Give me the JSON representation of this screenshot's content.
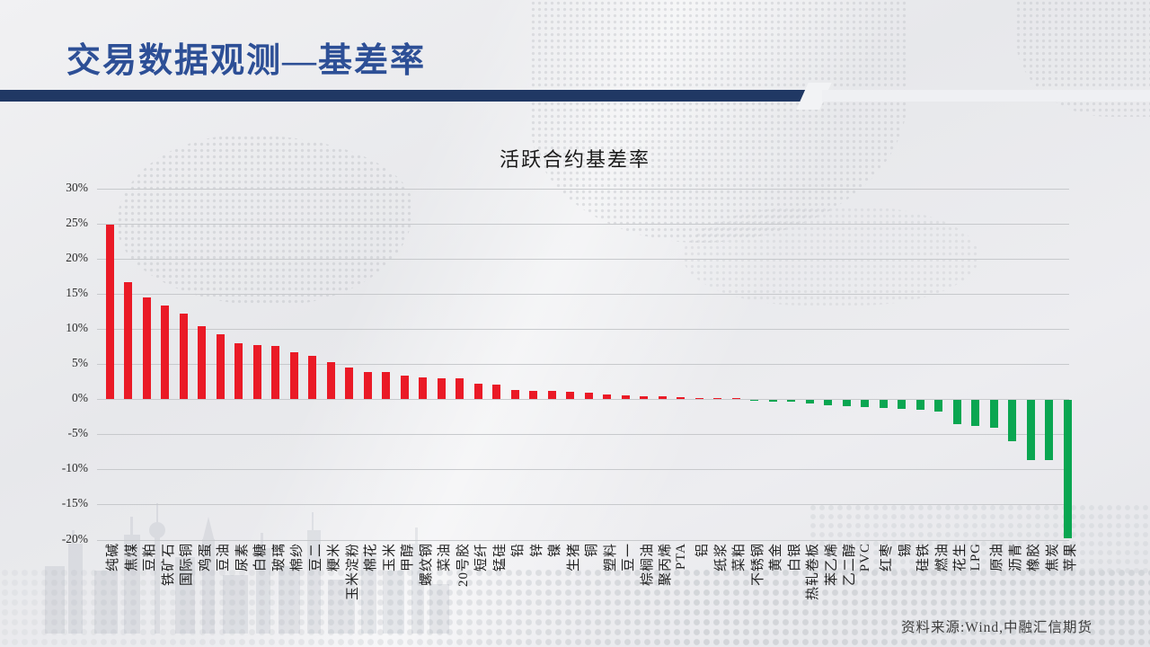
{
  "header": {
    "title": "交易数据观测—基差率"
  },
  "footer": {
    "source": "资料来源:Wind,中融汇信期货"
  },
  "colors": {
    "title_blue": "#2d4f96",
    "rule_navy": "#203864",
    "bar_positive": "#ea1a26",
    "bar_negative": "#0aa651",
    "gridline": "#c7c9cc"
  },
  "chart_data": {
    "type": "bar",
    "title": "活跃合约基差率",
    "xlabel": "",
    "ylabel": "",
    "unit": "%",
    "ylim": [
      -20,
      30
    ],
    "ytick_step": 5,
    "ytick_labels": [
      "30%",
      "25%",
      "20%",
      "15%",
      "10%",
      "5%",
      "0%",
      "-5%",
      "-10%",
      "-15%",
      "-20%"
    ],
    "grid": true,
    "legend": "none",
    "categories": [
      "纯碱",
      "焦煤",
      "豆粕",
      "铁矿石",
      "国际铜",
      "鸡蛋",
      "豆油",
      "尿素",
      "白糖",
      "玻璃",
      "棉纱",
      "豆二",
      "粳米",
      "玉米淀粉",
      "棉花",
      "玉米",
      "甲醇",
      "螺纹钢",
      "菜油",
      "20号胶",
      "短纤",
      "锰硅",
      "铅",
      "锌",
      "镍",
      "生猪",
      "铜",
      "塑料",
      "豆一",
      "棕榈油",
      "聚丙烯",
      "PTA",
      "铝",
      "纸浆",
      "菜粕",
      "不锈钢",
      "黄金",
      "白银",
      "热轧卷板",
      "苯乙烯",
      "乙二醇",
      "PVC",
      "红枣",
      "锡",
      "硅铁",
      "燃油",
      "花生",
      "LPG",
      "原油",
      "沥青",
      "橡胶",
      "焦炭",
      "苹果"
    ],
    "values": [
      24.8,
      16.6,
      14.5,
      13.3,
      12.1,
      10.4,
      9.2,
      8.0,
      7.7,
      7.6,
      6.6,
      6.2,
      5.3,
      4.5,
      3.9,
      3.8,
      3.3,
      3.1,
      2.9,
      2.9,
      2.2,
      2.1,
      1.3,
      1.2,
      1.1,
      1.0,
      0.9,
      0.7,
      0.5,
      0.4,
      0.35,
      0.25,
      0.15,
      0.1,
      0.05,
      -0.1,
      -0.2,
      -0.3,
      -0.55,
      -0.7,
      -0.9,
      -1.05,
      -1.15,
      -1.25,
      -1.4,
      -1.7,
      -3.5,
      -3.7,
      -3.9,
      -5.9,
      -8.6,
      -8.6,
      -19.7
    ]
  }
}
